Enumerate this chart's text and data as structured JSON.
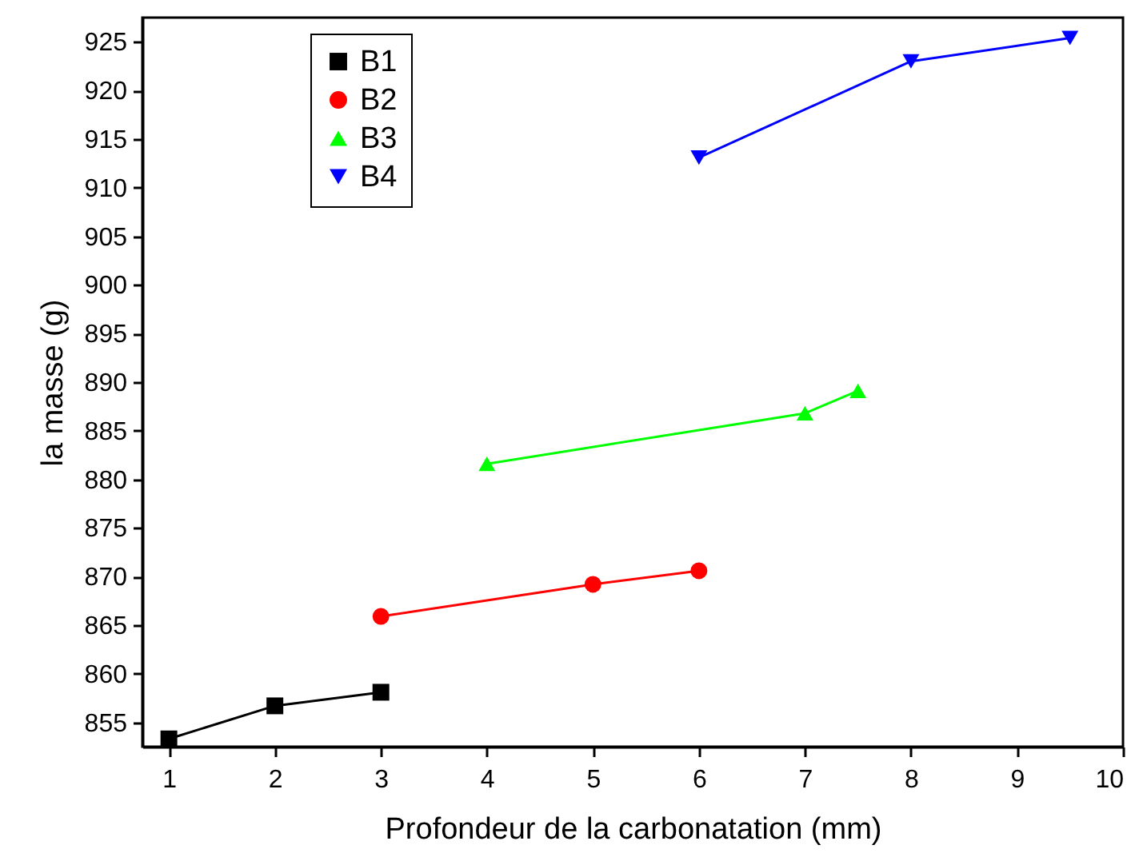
{
  "chart_data": {
    "type": "line",
    "xlabel": "Profondeur de la carbonatation (mm)",
    "ylabel": "la masse (g)",
    "xlim": [
      0.75,
      10
    ],
    "xticks": [
      1,
      2,
      3,
      4,
      5,
      6,
      7,
      8,
      9,
      10
    ],
    "ylim": [
      852.5,
      927.5
    ],
    "yticks": [
      855,
      860,
      865,
      870,
      875,
      880,
      885,
      890,
      895,
      900,
      905,
      910,
      915,
      920,
      925
    ],
    "grid": false,
    "legend": "top left",
    "line_style": "solid",
    "series": [
      {
        "name": "B1",
        "color": "#000000",
        "marker": "square",
        "x": [
          1,
          2,
          3
        ],
        "values": [
          853.3,
          856.7,
          858.1
        ]
      },
      {
        "name": "B2",
        "color": "#ff0000",
        "marker": "circle",
        "x": [
          3,
          5,
          6
        ],
        "values": [
          865.9,
          869.2,
          870.6
        ]
      },
      {
        "name": "B3",
        "color": "#00ff00",
        "marker": "triangle",
        "x": [
          4,
          7,
          7.5
        ],
        "values": [
          881.6,
          886.8,
          889.1
        ]
      },
      {
        "name": "B4",
        "color": "#0000ff",
        "marker": "triangle-down",
        "x": [
          6,
          8,
          9.5
        ],
        "values": [
          913.1,
          923.0,
          925.4
        ]
      }
    ]
  }
}
